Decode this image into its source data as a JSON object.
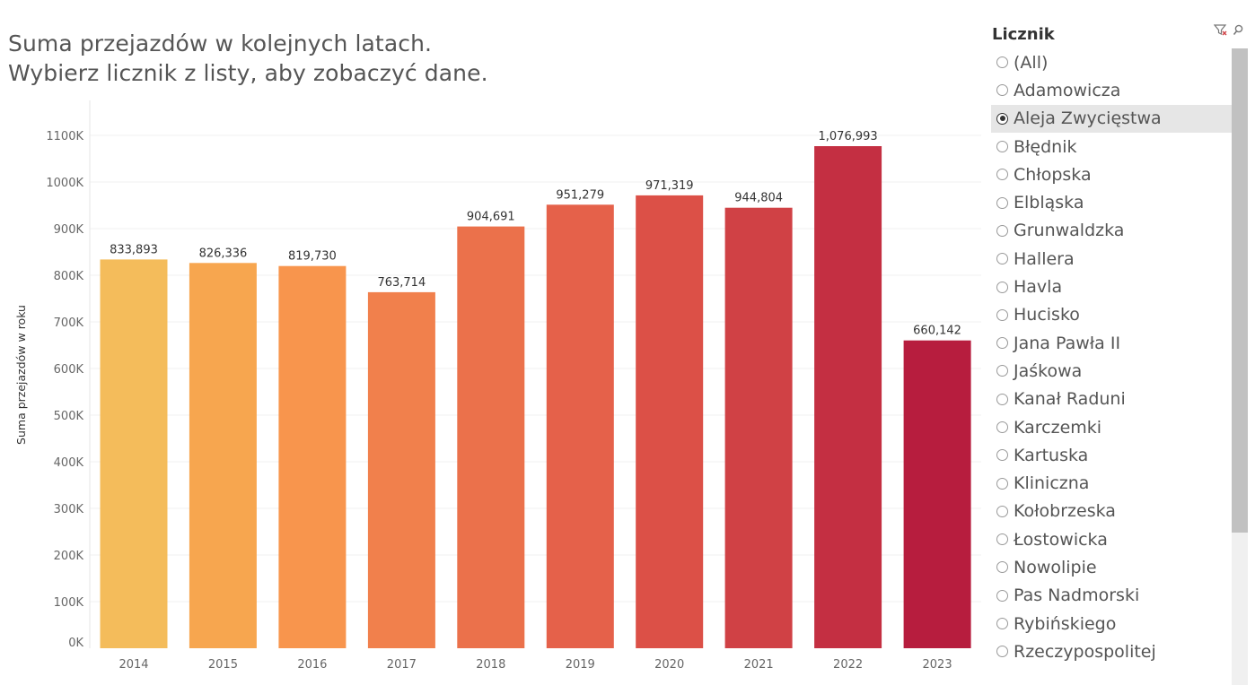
{
  "header": {
    "title_line1": "Suma przejazdów w kolejnych latach.",
    "title_line2": "Wybierz licznik z listy, aby zobaczyć dane."
  },
  "chart_data": {
    "type": "bar",
    "categories": [
      "2014",
      "2015",
      "2016",
      "2017",
      "2018",
      "2019",
      "2020",
      "2021",
      "2022",
      "2023"
    ],
    "values": [
      833893,
      826336,
      819730,
      763714,
      904691,
      951279,
      971319,
      944804,
      1076993,
      660142
    ],
    "data_labels": [
      "833,893",
      "826,336",
      "819,730",
      "763,714",
      "904,691",
      "951,279",
      "971,319",
      "944,804",
      "1,076,993",
      "660,142"
    ],
    "colors": [
      "#f4bc5b",
      "#f7a64f",
      "#f8954d",
      "#f1804c",
      "#eb714b",
      "#e5614a",
      "#dc5047",
      "#d04145",
      "#c42f42",
      "#b71d3e"
    ],
    "ylabel": "Suma przejazdów w roku",
    "xlabel": "",
    "ylim": [
      0,
      1150000
    ],
    "yticks": [
      0,
      100000,
      200000,
      300000,
      400000,
      500000,
      600000,
      700000,
      800000,
      900000,
      1000000,
      1100000
    ],
    "ytick_labels": [
      "0K",
      "100K",
      "200K",
      "300K",
      "400K",
      "500K",
      "600K",
      "700K",
      "800K",
      "900K",
      "1000K",
      "1100K"
    ],
    "grid": true,
    "legend": "none"
  },
  "filter": {
    "title": "Licznik",
    "selected": "Aleja Zwycięstwa",
    "icons": [
      "clear-filter-icon",
      "search-icon"
    ],
    "items": [
      "(All)",
      "Adamowicza",
      "Aleja Zwycięstwa",
      "Błędnik",
      "Chłopska",
      "Elbląska",
      "Grunwaldzka",
      "Hallera",
      "Havla",
      "Hucisko",
      "Jana Pawła II",
      "Jaśkowa",
      "Kanał Raduni",
      "Karczemki",
      "Kartuska",
      "Kliniczna",
      "Kołobrzeska",
      "Łostowicka",
      "Nowolipie",
      "Pas Nadmorski",
      "Rybińskiego",
      "Rzeczypospolitej"
    ]
  }
}
